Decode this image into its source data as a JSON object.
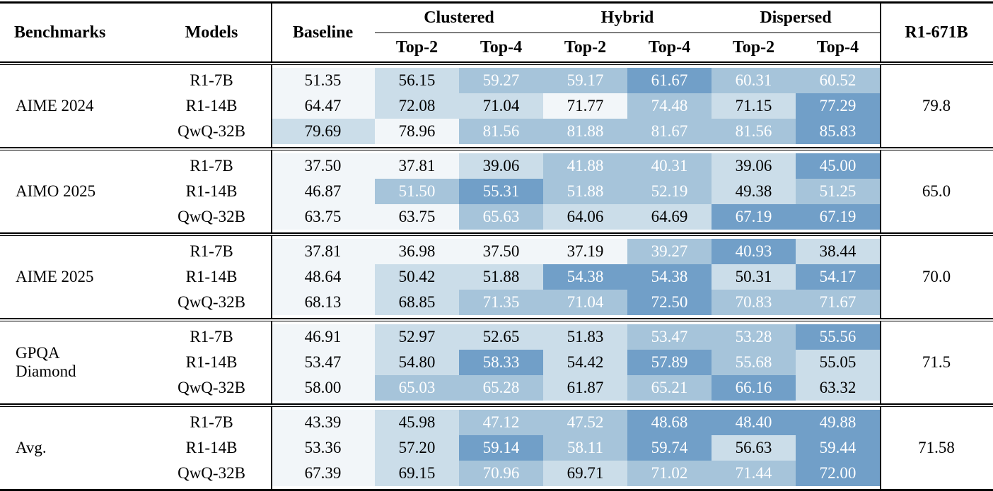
{
  "header": {
    "benchmarks": "Benchmarks",
    "models": "Models",
    "baseline": "Baseline",
    "clustered": "Clustered",
    "hybrid": "Hybrid",
    "dispersed": "Dispersed",
    "top2": "Top-2",
    "top4": "Top-4",
    "r671b": "R1-671B"
  },
  "colors": {
    "pale": "#f2f6f9",
    "light": "#cbdde9",
    "medium": "#a6c4da",
    "dark": "#719fc8",
    "dark_text": "#000000",
    "light_text": "#ffffff",
    "rule": "#000000"
  },
  "groups": [
    {
      "benchmark": "AIME 2024",
      "r671b": "79.8",
      "rows": [
        {
          "model": "R1-7B",
          "cells": [
            {
              "v": "51.35",
              "t": "w"
            },
            {
              "v": "56.15",
              "t": "l"
            },
            {
              "v": "59.27",
              "t": "m"
            },
            {
              "v": "59.17",
              "t": "m"
            },
            {
              "v": "61.67",
              "t": "d"
            },
            {
              "v": "60.31",
              "t": "m"
            },
            {
              "v": "60.52",
              "t": "m"
            }
          ]
        },
        {
          "model": "R1-14B",
          "cells": [
            {
              "v": "64.47",
              "t": "w"
            },
            {
              "v": "72.08",
              "t": "l"
            },
            {
              "v": "71.04",
              "t": "l"
            },
            {
              "v": "71.77",
              "t": "w"
            },
            {
              "v": "74.48",
              "t": "m"
            },
            {
              "v": "71.15",
              "t": "l"
            },
            {
              "v": "77.29",
              "t": "d"
            }
          ]
        },
        {
          "model": "QwQ-32B",
          "cells": [
            {
              "v": "79.69",
              "t": "l"
            },
            {
              "v": "78.96",
              "t": "w"
            },
            {
              "v": "81.56",
              "t": "m"
            },
            {
              "v": "81.88",
              "t": "m"
            },
            {
              "v": "81.67",
              "t": "m"
            },
            {
              "v": "81.56",
              "t": "m"
            },
            {
              "v": "85.83",
              "t": "d"
            }
          ]
        }
      ]
    },
    {
      "benchmark": "AIMO 2025",
      "r671b": "65.0",
      "rows": [
        {
          "model": "R1-7B",
          "cells": [
            {
              "v": "37.50",
              "t": "w"
            },
            {
              "v": "37.81",
              "t": "w"
            },
            {
              "v": "39.06",
              "t": "l"
            },
            {
              "v": "41.88",
              "t": "m"
            },
            {
              "v": "40.31",
              "t": "m"
            },
            {
              "v": "39.06",
              "t": "l"
            },
            {
              "v": "45.00",
              "t": "d"
            }
          ]
        },
        {
          "model": "R1-14B",
          "cells": [
            {
              "v": "46.87",
              "t": "w"
            },
            {
              "v": "51.50",
              "t": "m"
            },
            {
              "v": "55.31",
              "t": "d"
            },
            {
              "v": "51.88",
              "t": "m"
            },
            {
              "v": "52.19",
              "t": "m"
            },
            {
              "v": "49.38",
              "t": "l"
            },
            {
              "v": "51.25",
              "t": "m"
            }
          ]
        },
        {
          "model": "QwQ-32B",
          "cells": [
            {
              "v": "63.75",
              "t": "w"
            },
            {
              "v": "63.75",
              "t": "w"
            },
            {
              "v": "65.63",
              "t": "m"
            },
            {
              "v": "64.06",
              "t": "l"
            },
            {
              "v": "64.69",
              "t": "l"
            },
            {
              "v": "67.19",
              "t": "d"
            },
            {
              "v": "67.19",
              "t": "d"
            }
          ]
        }
      ]
    },
    {
      "benchmark": "AIME 2025",
      "r671b": "70.0",
      "rows": [
        {
          "model": "R1-7B",
          "cells": [
            {
              "v": "37.81",
              "t": "w"
            },
            {
              "v": "36.98",
              "t": "w"
            },
            {
              "v": "37.50",
              "t": "w"
            },
            {
              "v": "37.19",
              "t": "w"
            },
            {
              "v": "39.27",
              "t": "m"
            },
            {
              "v": "40.93",
              "t": "d"
            },
            {
              "v": "38.44",
              "t": "l"
            }
          ]
        },
        {
          "model": "R1-14B",
          "cells": [
            {
              "v": "48.64",
              "t": "w"
            },
            {
              "v": "50.42",
              "t": "l"
            },
            {
              "v": "51.88",
              "t": "l"
            },
            {
              "v": "54.38",
              "t": "d"
            },
            {
              "v": "54.38",
              "t": "d"
            },
            {
              "v": "50.31",
              "t": "l"
            },
            {
              "v": "54.17",
              "t": "d"
            }
          ]
        },
        {
          "model": "QwQ-32B",
          "cells": [
            {
              "v": "68.13",
              "t": "w"
            },
            {
              "v": "68.85",
              "t": "l"
            },
            {
              "v": "71.35",
              "t": "m"
            },
            {
              "v": "71.04",
              "t": "m"
            },
            {
              "v": "72.50",
              "t": "d"
            },
            {
              "v": "70.83",
              "t": "m"
            },
            {
              "v": "71.67",
              "t": "m"
            }
          ]
        }
      ]
    },
    {
      "benchmark": "GPQA Diamond",
      "r671b": "71.5",
      "rows": [
        {
          "model": "R1-7B",
          "cells": [
            {
              "v": "46.91",
              "t": "w"
            },
            {
              "v": "52.97",
              "t": "l"
            },
            {
              "v": "52.65",
              "t": "l"
            },
            {
              "v": "51.83",
              "t": "l"
            },
            {
              "v": "53.47",
              "t": "m"
            },
            {
              "v": "53.28",
              "t": "m"
            },
            {
              "v": "55.56",
              "t": "d"
            }
          ]
        },
        {
          "model": "R1-14B",
          "cells": [
            {
              "v": "53.47",
              "t": "w"
            },
            {
              "v": "54.80",
              "t": "l"
            },
            {
              "v": "58.33",
              "t": "d"
            },
            {
              "v": "54.42",
              "t": "l"
            },
            {
              "v": "57.89",
              "t": "d"
            },
            {
              "v": "55.68",
              "t": "m"
            },
            {
              "v": "55.05",
              "t": "l"
            }
          ]
        },
        {
          "model": "QwQ-32B",
          "cells": [
            {
              "v": "58.00",
              "t": "w"
            },
            {
              "v": "65.03",
              "t": "m"
            },
            {
              "v": "65.28",
              "t": "m"
            },
            {
              "v": "61.87",
              "t": "l"
            },
            {
              "v": "65.21",
              "t": "m"
            },
            {
              "v": "66.16",
              "t": "d"
            },
            {
              "v": "63.32",
              "t": "l"
            }
          ]
        }
      ]
    },
    {
      "benchmark": "Avg.",
      "r671b": "71.58",
      "rows": [
        {
          "model": "R1-7B",
          "cells": [
            {
              "v": "43.39",
              "t": "w"
            },
            {
              "v": "45.98",
              "t": "l"
            },
            {
              "v": "47.12",
              "t": "m"
            },
            {
              "v": "47.52",
              "t": "m"
            },
            {
              "v": "48.68",
              "t": "d"
            },
            {
              "v": "48.40",
              "t": "d"
            },
            {
              "v": "49.88",
              "t": "d"
            }
          ]
        },
        {
          "model": "R1-14B",
          "cells": [
            {
              "v": "53.36",
              "t": "w"
            },
            {
              "v": "57.20",
              "t": "l"
            },
            {
              "v": "59.14",
              "t": "d"
            },
            {
              "v": "58.11",
              "t": "m"
            },
            {
              "v": "59.74",
              "t": "d"
            },
            {
              "v": "56.63",
              "t": "l"
            },
            {
              "v": "59.44",
              "t": "d"
            }
          ]
        },
        {
          "model": "QwQ-32B",
          "cells": [
            {
              "v": "67.39",
              "t": "w"
            },
            {
              "v": "69.15",
              "t": "l"
            },
            {
              "v": "70.96",
              "t": "m"
            },
            {
              "v": "69.71",
              "t": "l"
            },
            {
              "v": "71.02",
              "t": "m"
            },
            {
              "v": "71.44",
              "t": "m"
            },
            {
              "v": "72.00",
              "t": "d"
            }
          ]
        }
      ]
    }
  ]
}
